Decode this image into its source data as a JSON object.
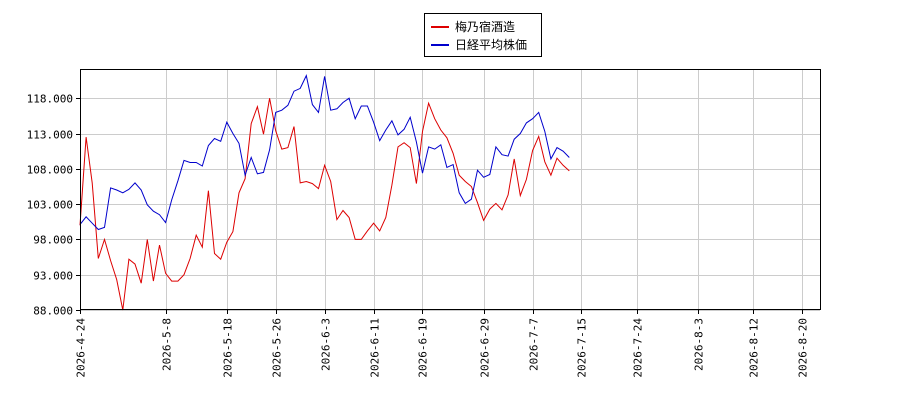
{
  "chart_data": {
    "type": "line",
    "title": "",
    "xlabel": "",
    "ylabel": "",
    "ylim": [
      88000,
      122000
    ],
    "yticks": [
      "88.000",
      "93.000",
      "98.000",
      "103.000",
      "108.000",
      "113.000",
      "118.000"
    ],
    "ytick_values": [
      88000,
      93000,
      98000,
      103000,
      108000,
      113000,
      118000
    ],
    "x_start": "2026-04-24",
    "x_end": "2026-08-23",
    "xticks": [
      "2026-4-24",
      "2026-5-8",
      "2026-5-18",
      "2026-5-26",
      "2026-6-3",
      "2026-6-11",
      "2026-6-19",
      "2026-6-29",
      "2026-7-7",
      "2026-7-15",
      "2026-7-24",
      "2026-8-3",
      "2026-8-12",
      "2026-8-20"
    ],
    "xtick_dates": [
      "2026-04-24",
      "2026-05-08",
      "2026-05-18",
      "2026-05-26",
      "2026-06-03",
      "2026-06-11",
      "2026-06-19",
      "2026-06-29",
      "2026-07-07",
      "2026-07-15",
      "2026-07-24",
      "2026-08-03",
      "2026-08-12",
      "2026-08-20"
    ],
    "grid": true,
    "legend_position": "top-center",
    "series": [
      {
        "name": "梅乃宿酒造",
        "color": "#dd0000",
        "points": [
          [
            "2026-04-24",
            100000
          ],
          [
            "2026-04-25",
            112500
          ],
          [
            "2026-04-26",
            106000
          ],
          [
            "2026-04-27",
            95300
          ],
          [
            "2026-04-28",
            98000
          ],
          [
            "2026-04-29",
            95000
          ],
          [
            "2026-04-30",
            92300
          ],
          [
            "2026-05-01",
            88000
          ],
          [
            "2026-05-02",
            95200
          ],
          [
            "2026-05-03",
            94500
          ],
          [
            "2026-05-04",
            91800
          ],
          [
            "2026-05-05",
            98000
          ],
          [
            "2026-05-06",
            92100
          ],
          [
            "2026-05-07",
            97200
          ],
          [
            "2026-05-08",
            93200
          ],
          [
            "2026-05-09",
            92100
          ],
          [
            "2026-05-10",
            92100
          ],
          [
            "2026-05-11",
            93000
          ],
          [
            "2026-05-12",
            95300
          ],
          [
            "2026-05-13",
            98600
          ],
          [
            "2026-05-14",
            96900
          ],
          [
            "2026-05-15",
            104900
          ],
          [
            "2026-05-16",
            96000
          ],
          [
            "2026-05-17",
            95200
          ],
          [
            "2026-05-18",
            97600
          ],
          [
            "2026-05-19",
            99100
          ],
          [
            "2026-05-20",
            104600
          ],
          [
            "2026-05-21",
            106600
          ],
          [
            "2026-05-22",
            114400
          ],
          [
            "2026-05-23",
            116800
          ],
          [
            "2026-05-24",
            112900
          ],
          [
            "2026-05-25",
            118000
          ],
          [
            "2026-05-26",
            113400
          ],
          [
            "2026-05-27",
            110800
          ],
          [
            "2026-05-28",
            111000
          ],
          [
            "2026-05-29",
            114000
          ],
          [
            "2026-05-30",
            106000
          ],
          [
            "2026-05-31",
            106200
          ],
          [
            "2026-06-01",
            105900
          ],
          [
            "2026-06-02",
            105200
          ],
          [
            "2026-06-03",
            108500
          ],
          [
            "2026-06-04",
            106200
          ],
          [
            "2026-06-05",
            100800
          ],
          [
            "2026-06-06",
            102100
          ],
          [
            "2026-06-07",
            101100
          ],
          [
            "2026-06-08",
            98000
          ],
          [
            "2026-06-09",
            98000
          ],
          [
            "2026-06-10",
            99200
          ],
          [
            "2026-06-11",
            100300
          ],
          [
            "2026-06-12",
            99200
          ],
          [
            "2026-06-13",
            101100
          ],
          [
            "2026-06-14",
            105700
          ],
          [
            "2026-06-15",
            111100
          ],
          [
            "2026-06-16",
            111700
          ],
          [
            "2026-06-17",
            111000
          ],
          [
            "2026-06-18",
            105900
          ],
          [
            "2026-06-19",
            113300
          ],
          [
            "2026-06-20",
            117300
          ],
          [
            "2026-06-21",
            115100
          ],
          [
            "2026-06-22",
            113500
          ],
          [
            "2026-06-23",
            112400
          ],
          [
            "2026-06-24",
            110200
          ],
          [
            "2026-06-25",
            107100
          ],
          [
            "2026-06-26",
            106200
          ],
          [
            "2026-06-27",
            105500
          ],
          [
            "2026-06-28",
            103200
          ],
          [
            "2026-06-29",
            100700
          ],
          [
            "2026-06-30",
            102300
          ],
          [
            "2026-07-01",
            103100
          ],
          [
            "2026-07-02",
            102200
          ],
          [
            "2026-07-03",
            104300
          ],
          [
            "2026-07-04",
            109400
          ],
          [
            "2026-07-05",
            104200
          ],
          [
            "2026-07-06",
            106500
          ],
          [
            "2026-07-07",
            110600
          ],
          [
            "2026-07-08",
            112600
          ],
          [
            "2026-07-09",
            109000
          ],
          [
            "2026-07-10",
            107100
          ],
          [
            "2026-07-11",
            109500
          ],
          [
            "2026-07-12",
            108500
          ],
          [
            "2026-07-13",
            107700
          ]
        ]
      },
      {
        "name": "日経平均株価",
        "color": "#0000cc",
        "points": [
          [
            "2026-04-24",
            100100
          ],
          [
            "2026-04-25",
            101200
          ],
          [
            "2026-04-26",
            100300
          ],
          [
            "2026-04-27",
            99400
          ],
          [
            "2026-04-28",
            99700
          ],
          [
            "2026-04-29",
            105300
          ],
          [
            "2026-04-30",
            105000
          ],
          [
            "2026-05-01",
            104600
          ],
          [
            "2026-05-02",
            105100
          ],
          [
            "2026-05-03",
            106000
          ],
          [
            "2026-05-04",
            105000
          ],
          [
            "2026-05-05",
            102900
          ],
          [
            "2026-05-06",
            102000
          ],
          [
            "2026-05-07",
            101500
          ],
          [
            "2026-05-08",
            100400
          ],
          [
            "2026-05-09",
            103600
          ],
          [
            "2026-05-10",
            106300
          ],
          [
            "2026-05-11",
            109200
          ],
          [
            "2026-05-12",
            108900
          ],
          [
            "2026-05-13",
            108900
          ],
          [
            "2026-05-14",
            108400
          ],
          [
            "2026-05-15",
            111300
          ],
          [
            "2026-05-16",
            112300
          ],
          [
            "2026-05-17",
            111900
          ],
          [
            "2026-05-18",
            114600
          ],
          [
            "2026-05-19",
            113000
          ],
          [
            "2026-05-20",
            111600
          ],
          [
            "2026-05-21",
            107100
          ],
          [
            "2026-05-22",
            109600
          ],
          [
            "2026-05-23",
            107300
          ],
          [
            "2026-05-24",
            107500
          ],
          [
            "2026-05-25",
            110700
          ],
          [
            "2026-05-26",
            116000
          ],
          [
            "2026-05-27",
            116300
          ],
          [
            "2026-05-28",
            117000
          ],
          [
            "2026-05-29",
            119000
          ],
          [
            "2026-05-30",
            119400
          ],
          [
            "2026-05-31",
            121200
          ],
          [
            "2026-06-01",
            117100
          ],
          [
            "2026-06-02",
            116000
          ],
          [
            "2026-06-03",
            121100
          ],
          [
            "2026-06-04",
            116300
          ],
          [
            "2026-06-05",
            116500
          ],
          [
            "2026-06-06",
            117400
          ],
          [
            "2026-06-07",
            118000
          ],
          [
            "2026-06-08",
            115100
          ],
          [
            "2026-06-09",
            116900
          ],
          [
            "2026-06-10",
            116900
          ],
          [
            "2026-06-11",
            114600
          ],
          [
            "2026-06-12",
            112000
          ],
          [
            "2026-06-13",
            113500
          ],
          [
            "2026-06-14",
            114800
          ],
          [
            "2026-06-15",
            112800
          ],
          [
            "2026-06-16",
            113600
          ],
          [
            "2026-06-17",
            115300
          ],
          [
            "2026-06-18",
            111800
          ],
          [
            "2026-06-19",
            107400
          ],
          [
            "2026-06-20",
            111100
          ],
          [
            "2026-06-21",
            110800
          ],
          [
            "2026-06-22",
            111400
          ],
          [
            "2026-06-23",
            108200
          ],
          [
            "2026-06-24",
            108600
          ],
          [
            "2026-06-25",
            104600
          ],
          [
            "2026-06-26",
            103100
          ],
          [
            "2026-06-27",
            103700
          ],
          [
            "2026-06-28",
            107800
          ],
          [
            "2026-06-29",
            106800
          ],
          [
            "2026-06-30",
            107200
          ],
          [
            "2026-07-01",
            111100
          ],
          [
            "2026-07-02",
            110000
          ],
          [
            "2026-07-03",
            109800
          ],
          [
            "2026-07-04",
            112200
          ],
          [
            "2026-07-05",
            113000
          ],
          [
            "2026-07-06",
            114500
          ],
          [
            "2026-07-07",
            115100
          ],
          [
            "2026-07-08",
            116000
          ],
          [
            "2026-07-09",
            113300
          ],
          [
            "2026-07-10",
            109400
          ],
          [
            "2026-07-11",
            111000
          ],
          [
            "2026-07-12",
            110500
          ],
          [
            "2026-07-13",
            109600
          ]
        ]
      }
    ]
  }
}
